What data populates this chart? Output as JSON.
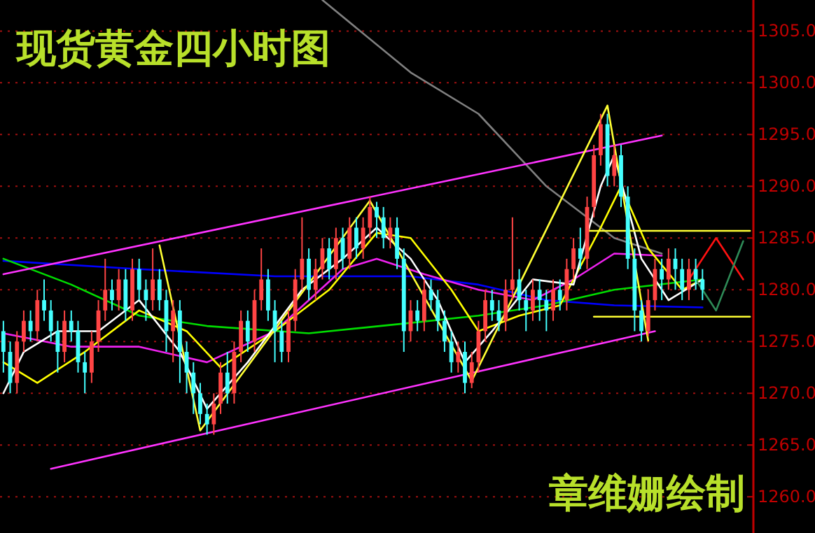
{
  "chart_data": {
    "type": "candlestick",
    "title": "现货黄金四小时图",
    "annotations": [
      "章维姗绘制"
    ],
    "categories": [
      null,
      null,
      null,
      null,
      null,
      null,
      null,
      null,
      null,
      null,
      null,
      null,
      null,
      null,
      null,
      null,
      null,
      null,
      null,
      null,
      null,
      null,
      null,
      null,
      null,
      null,
      null,
      null,
      null,
      null,
      null,
      null,
      null,
      null,
      null,
      null,
      null,
      null,
      null,
      null,
      null,
      null,
      null,
      null,
      null,
      null,
      null,
      null,
      null,
      null,
      null,
      null,
      null,
      null,
      null,
      null,
      null,
      null,
      null,
      null,
      null,
      null,
      null,
      null,
      null,
      null,
      null,
      null,
      null,
      null,
      null,
      null,
      null,
      null,
      null,
      null,
      null,
      null,
      null,
      null,
      null,
      null,
      null,
      null,
      null,
      null,
      null,
      null,
      null,
      null,
      null,
      null,
      null,
      null,
      null,
      null,
      null,
      null,
      null,
      null,
      null,
      null,
      null,
      null,
      null,
      null,
      null,
      null,
      null,
      null,
      null
    ],
    "ohlc": [
      [
        1276,
        1277,
        1272,
        1274
      ],
      [
        1274,
        1275,
        1270,
        1271
      ],
      [
        1271,
        1276,
        1270,
        1275
      ],
      [
        1275,
        1278,
        1274,
        1277
      ],
      [
        1277,
        1278,
        1275,
        1276
      ],
      [
        1276,
        1280,
        1275,
        1279
      ],
      [
        1279,
        1281,
        1277,
        1278
      ],
      [
        1278,
        1279,
        1275,
        1276
      ],
      [
        1276,
        1277,
        1272,
        1274
      ],
      [
        1274,
        1278,
        1273,
        1277
      ],
      [
        1277,
        1278,
        1275,
        1276
      ],
      [
        1276,
        1277,
        1272,
        1273
      ],
      [
        1273,
        1274,
        1270,
        1272
      ],
      [
        1272,
        1276,
        1271,
        1275
      ],
      [
        1275,
        1279,
        1274,
        1278
      ],
      [
        1278,
        1283,
        1277,
        1280
      ],
      [
        1280,
        1281,
        1278,
        1279
      ],
      [
        1279,
        1282,
        1278,
        1281
      ],
      [
        1281,
        1282,
        1277,
        1278
      ],
      [
        1278,
        1283,
        1277,
        1282
      ],
      [
        1282,
        1283,
        1279,
        1280
      ],
      [
        1280,
        1281,
        1277,
        1279
      ],
      [
        1279,
        1284,
        1278,
        1281
      ],
      [
        1281,
        1282,
        1278,
        1279
      ],
      [
        1279,
        1280,
        1274,
        1276
      ],
      [
        1276,
        1279,
        1273,
        1278
      ],
      [
        1278,
        1279,
        1271,
        1274
      ],
      [
        1274,
        1275,
        1270,
        1272
      ],
      [
        1272,
        1273,
        1268,
        1270
      ],
      [
        1270,
        1271,
        1267,
        1268
      ],
      [
        1268,
        1269,
        1266,
        1267
      ],
      [
        1267,
        1270,
        1266,
        1269
      ],
      [
        1269,
        1273,
        1268,
        1272
      ],
      [
        1272,
        1274,
        1269,
        1270
      ],
      [
        1270,
        1275,
        1269,
        1274
      ],
      [
        1274,
        1278,
        1273,
        1277
      ],
      [
        1277,
        1278,
        1274,
        1275
      ],
      [
        1275,
        1280,
        1274,
        1279
      ],
      [
        1279,
        1284,
        1278,
        1281
      ],
      [
        1281,
        1282,
        1277,
        1278
      ],
      [
        1278,
        1279,
        1273,
        1276
      ],
      [
        1276,
        1277,
        1273,
        1274
      ],
      [
        1274,
        1278,
        1273,
        1277
      ],
      [
        1277,
        1282,
        1276,
        1281
      ],
      [
        1281,
        1287,
        1280,
        1283
      ],
      [
        1283,
        1284,
        1279,
        1280
      ],
      [
        1280,
        1283,
        1279,
        1282
      ],
      [
        1282,
        1285,
        1281,
        1284
      ],
      [
        1284,
        1285,
        1281,
        1282
      ],
      [
        1282,
        1286,
        1281,
        1285
      ],
      [
        1285,
        1286,
        1282,
        1283
      ],
      [
        1283,
        1287,
        1282,
        1286
      ],
      [
        1286,
        1287,
        1283,
        1284
      ],
      [
        1284,
        1287,
        1283,
        1286
      ],
      [
        1286,
        1289,
        1285,
        1288
      ],
      [
        1288,
        1288.5,
        1285,
        1287
      ],
      [
        1287,
        1288,
        1284,
        1285
      ],
      [
        1285,
        1287,
        1284,
        1286
      ],
      [
        1286,
        1287,
        1282,
        1283
      ],
      [
        1283,
        1284,
        1274,
        1276
      ],
      [
        1276,
        1279,
        1275,
        1278
      ],
      [
        1278,
        1279,
        1276,
        1277
      ],
      [
        1277,
        1281,
        1276,
        1280
      ],
      [
        1280,
        1281,
        1278,
        1279
      ],
      [
        1279,
        1280,
        1276,
        1277
      ],
      [
        1277,
        1278,
        1274,
        1275
      ],
      [
        1275,
        1276,
        1272,
        1273
      ],
      [
        1273,
        1275,
        1272,
        1274
      ],
      [
        1274,
        1275,
        1270,
        1271
      ],
      [
        1271,
        1274,
        1270.5,
        1273
      ],
      [
        1273,
        1277,
        1272,
        1276
      ],
      [
        1276,
        1280,
        1275,
        1279
      ],
      [
        1279,
        1280,
        1277,
        1278
      ],
      [
        1278,
        1279,
        1276,
        1277
      ],
      [
        1277,
        1281,
        1276,
        1280
      ],
      [
        1280,
        1287,
        1279,
        1281
      ],
      [
        1281,
        1282,
        1278,
        1279
      ],
      [
        1279,
        1280,
        1276,
        1278
      ],
      [
        1278,
        1281,
        1277,
        1280
      ],
      [
        1280,
        1281,
        1277,
        1279
      ],
      [
        1279,
        1280,
        1276,
        1278
      ],
      [
        1278,
        1281,
        1277,
        1280
      ],
      [
        1280,
        1281,
        1278,
        1279
      ],
      [
        1279,
        1283,
        1278,
        1282
      ],
      [
        1282,
        1285,
        1281,
        1284
      ],
      [
        1284,
        1286,
        1282,
        1283
      ],
      [
        1283,
        1289,
        1282,
        1288
      ],
      [
        1288,
        1294,
        1287,
        1293
      ],
      [
        1293,
        1297,
        1292,
        1296
      ],
      [
        1296,
        1297,
        1290,
        1291
      ],
      [
        1291,
        1294,
        1290,
        1293
      ],
      [
        1293,
        1294,
        1288,
        1289
      ],
      [
        1289,
        1290,
        1282,
        1283
      ],
      [
        1283,
        1284,
        1276,
        1278
      ],
      [
        1278,
        1279,
        1275,
        1276
      ],
      [
        1276,
        1280,
        1275.5,
        1279
      ],
      [
        1279,
        1283,
        1278,
        1282
      ],
      [
        1282,
        1283,
        1279,
        1281
      ],
      [
        1281,
        1284,
        1280,
        1283
      ],
      [
        1283,
        1284,
        1280,
        1282
      ],
      [
        1282,
        1283,
        1279,
        1280
      ],
      [
        1280,
        1283,
        1279,
        1282
      ],
      [
        1282,
        1283,
        1280,
        1281
      ],
      [
        1281,
        1282,
        1279,
        1280
      ],
      null,
      null,
      null,
      null,
      null,
      null,
      null
    ],
    "colors": [
      "#44ffff",
      "#44ffff",
      "#ff4444",
      "#ff4444",
      "#44ffff",
      "#ff4444",
      "#44ffff",
      "#44ffff",
      "#44ffff",
      "#ff4444",
      "#44ffff",
      "#44ffff",
      "#44ffff",
      "#ff4444",
      "#ff4444",
      "#ff4444",
      "#44ffff",
      "#ff4444",
      "#44ffff",
      "#ff4444",
      "#44ffff",
      "#44ffff",
      "#ff4444",
      "#44ffff",
      "#44ffff",
      "#ff4444",
      "#44ffff",
      "#44ffff",
      "#44ffff",
      "#44ffff",
      "#44ffff",
      "#ff4444",
      "#ff4444",
      "#44ffff",
      "#ff4444",
      "#ff4444",
      "#44ffff",
      "#ff4444",
      "#ff4444",
      "#44ffff",
      "#44ffff",
      "#44ffff",
      "#ff4444",
      "#ff4444",
      "#ff4444",
      "#44ffff",
      "#ff4444",
      "#ff4444",
      "#44ffff",
      "#ff4444",
      "#44ffff",
      "#ff4444",
      "#44ffff",
      "#ff4444",
      "#ff4444",
      "#44ffff",
      "#44ffff",
      "#ff4444",
      "#44ffff",
      "#44ffff",
      "#ff4444",
      "#44ffff",
      "#ff4444",
      "#44ffff",
      "#44ffff",
      "#44ffff",
      "#44ffff",
      "#ff4444",
      "#44ffff",
      "#ff4444",
      "#ff4444",
      "#ff4444",
      "#44ffff",
      "#44ffff",
      "#ff4444",
      "#ff4444",
      "#44ffff",
      "#44ffff",
      "#ff4444",
      "#44ffff",
      "#44ffff",
      "#ff4444",
      "#44ffff",
      "#ff4444",
      "#ff4444",
      "#44ffff",
      "#ff4444",
      "#ff4444",
      "#ff4444",
      "#44ffff",
      "#ff4444",
      "#44ffff",
      "#44ffff",
      "#44ffff",
      "#44ffff",
      "#ff4444",
      "#ff4444",
      "#44ffff",
      "#ff4444",
      "#44ffff",
      "#44ffff",
      "#ff4444",
      "#44ffff",
      "#44ffff",
      null,
      null,
      null,
      null,
      null,
      null,
      null
    ],
    "series": [
      {
        "type": "line",
        "color": "#0000ff",
        "values": [
          1282.8,
          null,
          null,
          null,
          null,
          null,
          null,
          null,
          null,
          null,
          null,
          null,
          null,
          null,
          null,
          null,
          null,
          null,
          null,
          null,
          1282,
          null,
          null,
          null,
          null,
          null,
          null,
          null,
          null,
          null,
          null,
          null,
          null,
          null,
          null,
          null,
          null,
          null,
          null,
          null,
          1281.3,
          null,
          null,
          null,
          null,
          null,
          null,
          null,
          null,
          null,
          null,
          null,
          null,
          null,
          null,
          null,
          null,
          null,
          null,
          null,
          1281.3,
          null,
          null,
          null,
          null,
          null,
          null,
          null,
          null,
          null,
          1280.5,
          null,
          null,
          null,
          null,
          null,
          null,
          null,
          null,
          null,
          1279,
          null,
          null,
          null,
          null,
          null,
          null,
          null,
          null,
          null,
          1278.5,
          null,
          null,
          null,
          null,
          null,
          null,
          null,
          null,
          null,
          null,
          null,
          null,
          1278.3,
          null,
          null,
          null,
          null,
          null,
          null,
          null
        ]
      },
      {
        "type": "line",
        "color": "#00dd00",
        "values": [
          1283,
          null,
          null,
          null,
          null,
          null,
          null,
          null,
          null,
          null,
          1280.5,
          null,
          null,
          null,
          null,
          null,
          null,
          null,
          null,
          null,
          1277.5,
          null,
          null,
          null,
          null,
          null,
          null,
          null,
          null,
          null,
          1276.5,
          null,
          null,
          null,
          null,
          null,
          null,
          null,
          null,
          null,
          null,
          null,
          null,
          null,
          null,
          1275.8,
          null,
          null,
          null,
          null,
          null,
          null,
          null,
          null,
          null,
          null,
          null,
          null,
          null,
          null,
          1276.8,
          null,
          null,
          null,
          null,
          null,
          null,
          null,
          null,
          null,
          1277.5,
          null,
          null,
          null,
          null,
          null,
          null,
          null,
          null,
          null,
          1278.5,
          null,
          null,
          null,
          null,
          null,
          null,
          null,
          null,
          null,
          1280,
          null,
          null,
          null,
          null,
          null,
          null,
          null,
          null,
          null,
          null,
          null,
          null,
          1281,
          null,
          null,
          null,
          null,
          null,
          null,
          null
        ]
      },
      {
        "type": "line",
        "color": "#808080",
        "values": [
          null,
          null,
          null,
          null,
          null,
          null,
          null,
          null,
          null,
          null,
          null,
          null,
          null,
          null,
          null,
          null,
          null,
          null,
          null,
          null,
          null,
          null,
          null,
          null,
          null,
          null,
          null,
          null,
          null,
          null,
          null,
          null,
          null,
          null,
          null,
          null,
          null,
          null,
          null,
          null,
          null,
          null,
          null,
          null,
          null,
          null,
          null,
          1308,
          null,
          null,
          null,
          null,
          null,
          null,
          null,
          null,
          null,
          null,
          null,
          null,
          1301,
          null,
          null,
          null,
          null,
          null,
          null,
          null,
          null,
          null,
          1297,
          null,
          null,
          null,
          null,
          null,
          null,
          null,
          null,
          null,
          1290,
          null,
          null,
          null,
          null,
          null,
          null,
          null,
          null,
          null,
          1285,
          null,
          null,
          null,
          null,
          null,
          null,
          1283.5,
          null,
          null,
          null,
          null,
          null,
          null,
          null,
          null,
          null,
          null,
          null,
          null,
          null
        ]
      },
      {
        "type": "line",
        "color": "#ee22ee",
        "values": [
          1275.8,
          null,
          null,
          null,
          null,
          null,
          null,
          null,
          null,
          null,
          1274.5,
          null,
          null,
          null,
          null,
          null,
          null,
          null,
          null,
          null,
          1274.5,
          null,
          null,
          null,
          null,
          null,
          null,
          null,
          null,
          null,
          1273,
          null,
          null,
          null,
          null,
          null,
          null,
          null,
          null,
          null,
          1276,
          null,
          null,
          null,
          null,
          null,
          null,
          null,
          null,
          null,
          1282,
          null,
          null,
          null,
          null,
          1283,
          null,
          null,
          null,
          null,
          null,
          null,
          1281.5,
          null,
          null,
          null,
          null,
          null,
          null,
          null,
          1280,
          null,
          null,
          null,
          null,
          null,
          null,
          null,
          1279,
          null,
          null,
          null,
          null,
          null,
          1281,
          null,
          null,
          null,
          null,
          null,
          1283.5,
          null,
          null,
          null,
          null,
          null,
          null,
          1283.3,
          null,
          null,
          null,
          null,
          null,
          null,
          null,
          null,
          null,
          null,
          null,
          null,
          null
        ]
      },
      {
        "type": "line",
        "color": "#ffff00",
        "values": [
          1273,
          null,
          null,
          null,
          null,
          1271,
          null,
          null,
          null,
          null,
          null,
          null,
          1274,
          null,
          null,
          null,
          null,
          null,
          null,
          null,
          1278,
          null,
          null,
          null,
          null,
          null,
          null,
          1276,
          null,
          null,
          null,
          null,
          1272.5,
          null,
          null,
          null,
          null,
          null,
          null,
          null,
          1276,
          null,
          null,
          null,
          null,
          null,
          null,
          null,
          1280,
          null,
          null,
          null,
          null,
          null,
          null,
          1285.5,
          null,
          null,
          null,
          null,
          1285,
          null,
          null,
          null,
          null,
          null,
          1280,
          null,
          null,
          null,
          1276,
          null,
          null,
          null,
          null,
          null,
          1277.5,
          null,
          null,
          null,
          null,
          null,
          1278.5,
          null,
          null,
          null,
          null,
          null,
          1286,
          null,
          null,
          1290,
          null,
          null,
          null,
          1284,
          null,
          null,
          null,
          null,
          1280,
          null,
          null,
          1281,
          null,
          null,
          null,
          null,
          null,
          null,
          null
        ]
      },
      {
        "type": "line",
        "color": "#ffffff",
        "values": [
          1270,
          null,
          null,
          1274,
          null,
          null,
          null,
          null,
          1276,
          null,
          null,
          null,
          null,
          null,
          1276,
          null,
          null,
          null,
          null,
          null,
          1279,
          null,
          null,
          null,
          null,
          null,
          1274,
          null,
          null,
          null,
          1268.5,
          null,
          null,
          null,
          null,
          null,
          1273,
          null,
          null,
          null,
          null,
          null,
          null,
          null,
          1280,
          null,
          null,
          null,
          null,
          null,
          1283,
          null,
          null,
          null,
          null,
          1286,
          null,
          null,
          null,
          null,
          1283,
          null,
          null,
          null,
          1279,
          null,
          null,
          null,
          1273,
          null,
          null,
          null,
          1276,
          null,
          null,
          null,
          null,
          null,
          1281,
          null,
          null,
          null,
          null,
          null,
          1280.5,
          null,
          null,
          null,
          1290,
          null,
          1293,
          null,
          null,
          null,
          1283,
          null,
          null,
          null,
          1279,
          null,
          null,
          null,
          null,
          1281,
          null,
          null,
          null,
          null,
          null,
          null,
          null
        ]
      },
      {
        "type": "line",
        "color": "#ff33ff",
        "values": [
          1281.5,
          null,
          null,
          null,
          null,
          null,
          null,
          null,
          null,
          null,
          null,
          null,
          null,
          null,
          null,
          null,
          null,
          null,
          null,
          null,
          null,
          null,
          null,
          null,
          null,
          null,
          null,
          null,
          null,
          null,
          null,
          null,
          null,
          null,
          null,
          null,
          null,
          null,
          null,
          null,
          null,
          null,
          null,
          null,
          null,
          null,
          null,
          null,
          null,
          null,
          null,
          null,
          null,
          null,
          null,
          null,
          null,
          null,
          null,
          null,
          null,
          null,
          null,
          null,
          null,
          null,
          null,
          null,
          null,
          null,
          null,
          null,
          null,
          null,
          null,
          null,
          null,
          null,
          null,
          null,
          null,
          null,
          null,
          null,
          null,
          null,
          null,
          null,
          null,
          null,
          null,
          null,
          null,
          null,
          null,
          null,
          null,
          1294.9,
          null,
          null,
          null,
          null,
          null,
          null,
          null,
          null,
          null,
          null,
          null,
          null,
          null
        ]
      },
      {
        "type": "line",
        "color": "#ff33ff",
        "values": [
          null,
          null,
          null,
          null,
          null,
          null,
          null,
          1262.7,
          null,
          null,
          null,
          null,
          null,
          null,
          null,
          null,
          null,
          null,
          null,
          null,
          null,
          null,
          null,
          null,
          null,
          null,
          null,
          null,
          null,
          null,
          null,
          null,
          null,
          null,
          null,
          null,
          null,
          null,
          null,
          null,
          null,
          null,
          null,
          null,
          null,
          null,
          null,
          null,
          null,
          null,
          null,
          null,
          null,
          null,
          null,
          null,
          null,
          null,
          null,
          null,
          null,
          null,
          null,
          null,
          null,
          null,
          null,
          null,
          null,
          null,
          null,
          null,
          null,
          null,
          null,
          null,
          null,
          null,
          null,
          null,
          null,
          null,
          null,
          null,
          null,
          null,
          null,
          null,
          null,
          null,
          null,
          null,
          null,
          null,
          null,
          null,
          1276,
          null,
          null,
          null,
          null,
          null,
          null,
          null,
          null,
          null,
          null,
          null,
          null,
          null,
          null
        ]
      },
      {
        "type": "line",
        "color": "#ffff33",
        "values": [
          null,
          null,
          null,
          null,
          null,
          null,
          null,
          null,
          null,
          null,
          null,
          null,
          null,
          null,
          null,
          null,
          null,
          null,
          null,
          null,
          null,
          null,
          null,
          1284.3,
          null,
          null,
          null,
          null,
          null,
          1266.4,
          null,
          null,
          null,
          null,
          null,
          null,
          null,
          null,
          null,
          null,
          null,
          null,
          null,
          null,
          null,
          null,
          null,
          null,
          null,
          null,
          null,
          null,
          null,
          null,
          1288.6,
          null,
          null,
          null,
          null,
          null,
          null,
          null,
          null,
          null,
          null,
          null,
          null,
          null,
          null,
          1271.2,
          null,
          null,
          null,
          null,
          null,
          null,
          null,
          null,
          null,
          null,
          null,
          null,
          null,
          null,
          null,
          null,
          null,
          null,
          null,
          1297.8,
          null,
          null,
          null,
          null,
          null,
          1275.1,
          null,
          null,
          null,
          null,
          null,
          null,
          null,
          null,
          null,
          null,
          null,
          null,
          null,
          null,
          null
        ]
      },
      {
        "type": "line",
        "color": "#ffff33",
        "values": [
          null,
          null,
          null,
          null,
          null,
          null,
          null,
          null,
          null,
          null,
          null,
          null,
          null,
          null,
          null,
          null,
          null,
          null,
          null,
          null,
          null,
          null,
          null,
          null,
          null,
          null,
          null,
          null,
          null,
          null,
          null,
          null,
          null,
          null,
          null,
          null,
          null,
          null,
          null,
          null,
          null,
          null,
          null,
          null,
          null,
          null,
          null,
          null,
          null,
          null,
          null,
          null,
          null,
          null,
          null,
          null,
          null,
          null,
          null,
          null,
          null,
          null,
          null,
          null,
          null,
          null,
          null,
          null,
          null,
          null,
          null,
          null,
          null,
          null,
          null,
          null,
          null,
          null,
          null,
          null,
          null,
          null,
          null,
          null,
          null,
          null,
          1285.7,
          null,
          null,
          null,
          null,
          null,
          null,
          null,
          null,
          null,
          null,
          null,
          null,
          null,
          null,
          null,
          null,
          null,
          null,
          null,
          null,
          null,
          null,
          null,
          1285.7
        ]
      },
      {
        "type": "line",
        "color": "#ffff33",
        "values": [
          null,
          null,
          null,
          null,
          null,
          null,
          null,
          null,
          null,
          null,
          null,
          null,
          null,
          null,
          null,
          null,
          null,
          null,
          null,
          null,
          null,
          null,
          null,
          null,
          null,
          null,
          null,
          null,
          null,
          null,
          null,
          null,
          null,
          null,
          null,
          null,
          null,
          null,
          null,
          null,
          null,
          null,
          null,
          null,
          null,
          null,
          null,
          null,
          null,
          null,
          null,
          null,
          null,
          null,
          null,
          null,
          null,
          null,
          null,
          null,
          null,
          null,
          null,
          null,
          null,
          null,
          null,
          null,
          null,
          null,
          null,
          null,
          null,
          null,
          null,
          null,
          null,
          null,
          null,
          null,
          null,
          null,
          null,
          null,
          null,
          null,
          null,
          1277.4,
          null,
          null,
          null,
          null,
          null,
          null,
          null,
          null,
          null,
          null,
          null,
          null,
          null,
          null,
          null,
          null,
          null,
          null,
          null,
          null,
          null,
          null,
          1277.4
        ]
      },
      {
        "type": "line",
        "color": "#ff1111",
        "values": [
          null,
          null,
          null,
          null,
          null,
          null,
          null,
          null,
          null,
          null,
          null,
          null,
          null,
          null,
          null,
          null,
          null,
          null,
          null,
          null,
          null,
          null,
          null,
          null,
          null,
          null,
          null,
          null,
          null,
          null,
          null,
          null,
          null,
          null,
          null,
          null,
          null,
          null,
          null,
          null,
          null,
          null,
          null,
          null,
          null,
          null,
          null,
          null,
          null,
          null,
          null,
          null,
          null,
          null,
          null,
          null,
          null,
          null,
          null,
          null,
          null,
          null,
          null,
          null,
          null,
          null,
          null,
          null,
          null,
          null,
          null,
          null,
          null,
          null,
          null,
          null,
          null,
          null,
          null,
          null,
          null,
          null,
          null,
          null,
          null,
          null,
          null,
          null,
          null,
          null,
          null,
          null,
          null,
          null,
          null,
          null,
          null,
          null,
          null,
          null,
          null,
          1281,
          null,
          null,
          null,
          1285,
          null,
          null,
          null,
          1281,
          null
        ]
      },
      {
        "type": "line",
        "color": "#2e8b57",
        "values": [
          null,
          null,
          null,
          null,
          null,
          null,
          null,
          null,
          null,
          null,
          null,
          null,
          null,
          null,
          null,
          null,
          null,
          null,
          null,
          null,
          null,
          null,
          null,
          null,
          null,
          null,
          null,
          null,
          null,
          null,
          null,
          null,
          null,
          null,
          null,
          null,
          null,
          null,
          null,
          null,
          null,
          null,
          null,
          null,
          null,
          null,
          null,
          null,
          null,
          null,
          null,
          null,
          null,
          null,
          null,
          null,
          null,
          null,
          null,
          null,
          null,
          null,
          null,
          null,
          null,
          null,
          null,
          null,
          null,
          null,
          null,
          null,
          null,
          null,
          null,
          null,
          null,
          null,
          null,
          null,
          null,
          null,
          null,
          null,
          null,
          null,
          null,
          null,
          null,
          null,
          null,
          null,
          null,
          null,
          null,
          null,
          null,
          null,
          null,
          null,
          null,
          null,
          1281,
          null,
          null,
          1278,
          null,
          null,
          null,
          1284.7,
          null
        ]
      }
    ],
    "ylim": [
      1256.5,
      1308
    ],
    "yticks": [
      {
        "value": 1260,
        "label": "1260.0"
      },
      {
        "value": 1265,
        "label": "1265.0"
      },
      {
        "value": 1270,
        "label": "1270.0"
      },
      {
        "value": 1275,
        "label": "1275.0"
      },
      {
        "value": 1280,
        "label": "1280.0"
      },
      {
        "value": 1285,
        "label": "1285.0"
      },
      {
        "value": 1290,
        "label": "1290.0"
      },
      {
        "value": 1295,
        "label": "1295.0"
      },
      {
        "value": 1300,
        "label": "1300.0"
      },
      {
        "value": 1305,
        "label": "1305.0"
      }
    ],
    "grid": "y",
    "tick_labels": "y"
  }
}
